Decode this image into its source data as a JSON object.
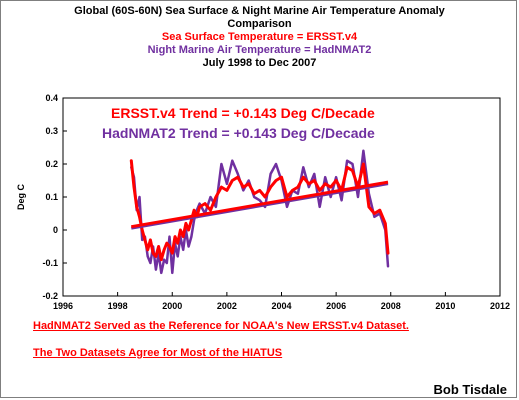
{
  "title_lines": [
    "Global (60S-60N) Sea Surface & Night Marine Air Temperature Anomaly",
    "Comparison",
    "Sea Surface Temperature = ERSST.v4",
    "Night Marine Air Temperature = HadNMAT2",
    "July 1998 to Dec 2007"
  ],
  "notes": [
    "HadNMAT2 Served as the Reference for NOAA's New ERSST.v4 Dataset.",
    "The Two Datasets Agree for Most of the HIATUS"
  ],
  "credit": "Bob Tisdale",
  "colors": {
    "ersst": "#ff0000",
    "hadnmat": "#7030a0"
  },
  "chart_data": {
    "type": "line",
    "ylabel": "Deg C",
    "xlim": [
      1996,
      2012
    ],
    "ylim": [
      -0.2,
      0.4
    ],
    "x_ticks": [
      1996,
      1998,
      2000,
      2002,
      2004,
      2006,
      2008,
      2010,
      2012
    ],
    "y_ticks": [
      "-0.2",
      "-0.1",
      "0",
      "0.1",
      "0.2",
      "0.3",
      "0.4"
    ],
    "x_tick_labels": [
      "1996",
      "1998",
      "2000",
      "2002",
      "2004",
      "2006",
      "2008",
      "2010",
      "2012"
    ],
    "grid": false,
    "annotations": [
      {
        "text": "ERSST.v4 Trend = +0.143 Deg C/Decade",
        "color": "#ff0000"
      },
      {
        "text": "HadNMAT2 Trend = +0.143 Deg C/Decade",
        "color": "#7030a0"
      }
    ],
    "series": [
      {
        "key": "hadnmat2",
        "color": "#7030a0",
        "x": [
          1998.5,
          1998.6,
          1998.7,
          1998.8,
          1998.9,
          1999.0,
          1999.1,
          1999.2,
          1999.3,
          1999.4,
          1999.5,
          1999.6,
          1999.7,
          1999.8,
          1999.9,
          2000.0,
          2000.1,
          2000.2,
          2000.3,
          2000.4,
          2000.5,
          2000.6,
          2000.7,
          2000.8,
          2000.9,
          2001.0,
          2001.2,
          2001.4,
          2001.6,
          2001.8,
          2002.0,
          2002.2,
          2002.4,
          2002.6,
          2002.8,
          2003.0,
          2003.2,
          2003.4,
          2003.6,
          2003.8,
          2004.0,
          2004.2,
          2004.4,
          2004.6,
          2004.8,
          2005.0,
          2005.2,
          2005.4,
          2005.6,
          2005.8,
          2006.0,
          2006.2,
          2006.4,
          2006.6,
          2006.8,
          2007.0,
          2007.2,
          2007.4,
          2007.6,
          2007.8,
          2007.9
        ],
        "y": [
          0.19,
          0.16,
          0.06,
          0.1,
          -0.03,
          -0.02,
          -0.08,
          -0.1,
          -0.05,
          -0.12,
          -0.07,
          -0.13,
          -0.09,
          -0.1,
          -0.02,
          -0.13,
          -0.04,
          -0.08,
          -0.02,
          -0.06,
          0.0,
          -0.05,
          -0.02,
          0.03,
          0.06,
          0.08,
          0.05,
          0.1,
          0.07,
          0.2,
          0.14,
          0.21,
          0.17,
          0.12,
          0.15,
          0.1,
          0.09,
          0.07,
          0.17,
          0.2,
          0.15,
          0.07,
          0.12,
          0.11,
          0.19,
          0.13,
          0.17,
          0.07,
          0.16,
          0.1,
          0.16,
          0.09,
          0.21,
          0.2,
          0.1,
          0.24,
          0.11,
          0.04,
          0.05,
          0.0,
          -0.11
        ]
      },
      {
        "key": "ersst",
        "color": "#ff0000",
        "x": [
          1998.5,
          1998.6,
          1998.7,
          1998.8,
          1998.9,
          1999.0,
          1999.1,
          1999.2,
          1999.3,
          1999.4,
          1999.5,
          1999.6,
          1999.7,
          1999.8,
          1999.9,
          2000.0,
          2000.1,
          2000.2,
          2000.3,
          2000.4,
          2000.5,
          2000.6,
          2000.7,
          2000.8,
          2000.9,
          2001.0,
          2001.2,
          2001.4,
          2001.6,
          2001.8,
          2002.0,
          2002.2,
          2002.4,
          2002.6,
          2002.8,
          2003.0,
          2003.2,
          2003.4,
          2003.6,
          2003.8,
          2004.0,
          2004.2,
          2004.4,
          2004.6,
          2004.8,
          2005.0,
          2005.2,
          2005.4,
          2005.6,
          2005.8,
          2006.0,
          2006.2,
          2006.4,
          2006.6,
          2006.8,
          2007.0,
          2007.2,
          2007.4,
          2007.6,
          2007.8,
          2007.9
        ],
        "y": [
          0.21,
          0.13,
          0.07,
          0.04,
          0.0,
          -0.03,
          -0.06,
          -0.03,
          -0.07,
          -0.08,
          -0.05,
          -0.09,
          -0.06,
          -0.04,
          -0.05,
          -0.07,
          -0.02,
          -0.04,
          0.0,
          -0.02,
          0.02,
          0.0,
          0.03,
          0.06,
          0.04,
          0.07,
          0.08,
          0.06,
          0.1,
          0.13,
          0.12,
          0.15,
          0.16,
          0.13,
          0.14,
          0.11,
          0.12,
          0.1,
          0.13,
          0.15,
          0.16,
          0.1,
          0.12,
          0.13,
          0.16,
          0.14,
          0.15,
          0.12,
          0.14,
          0.13,
          0.15,
          0.12,
          0.19,
          0.18,
          0.13,
          0.2,
          0.07,
          0.05,
          0.06,
          0.02,
          -0.07
        ]
      }
    ],
    "trend": {
      "x": [
        1998.5,
        2007.9
      ],
      "y": [
        0.01,
        0.145
      ]
    }
  }
}
